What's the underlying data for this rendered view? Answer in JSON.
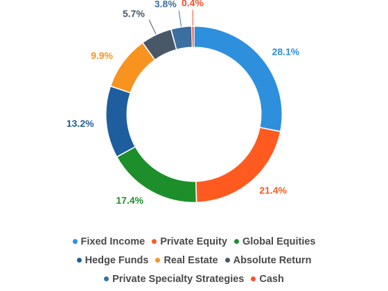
{
  "chart_data": {
    "type": "pie",
    "variant": "donut",
    "title": "",
    "categories": [
      "Fixed Income",
      "Private Equity",
      "Global Equities",
      "Hedge Funds",
      "Real Estate",
      "Absolute Return",
      "Private Specialty Strategies",
      "Cash"
    ],
    "values": [
      28.1,
      21.4,
      17.4,
      13.2,
      9.9,
      5.7,
      3.8,
      0.4
    ],
    "labels": [
      "28.1%",
      "21.4%",
      "17.4%",
      "13.2%",
      "9.9%",
      "5.7%",
      "3.8%",
      "0.4%"
    ],
    "colors": [
      "#2e8fdd",
      "#ff5a1f",
      "#1d8f2a",
      "#1f5e9e",
      "#f8931f",
      "#495866",
      "#3a6fa0",
      "#ff4b2b"
    ],
    "legend_position": "bottom"
  }
}
